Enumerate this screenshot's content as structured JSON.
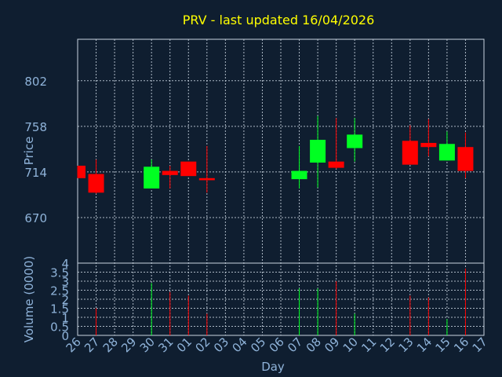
{
  "chart_data": {
    "type": "candlestick",
    "title": "PRV - last updated 16/04/2026",
    "price_panel": {
      "ylabel": "Price",
      "ylim": [
        626,
        842
      ],
      "yticks": [
        670,
        714,
        758,
        802
      ]
    },
    "volume_panel": {
      "ylabel": "Volume (0000)",
      "ylim": [
        0,
        4
      ],
      "yticks": [
        0,
        0.5,
        1,
        1.5,
        2,
        2.5,
        3,
        3.5,
        4
      ],
      "ytick_labels": [
        "0",
        "0.5",
        "1",
        "1.5",
        "2",
        "2.5",
        "3",
        "3.5",
        "4"
      ]
    },
    "xlabel": "Day",
    "categories": [
      "26",
      "27",
      "28",
      "29",
      "30",
      "31",
      "01",
      "02",
      "03",
      "04",
      "05",
      "06",
      "07",
      "08",
      "09",
      "10",
      "11",
      "12",
      "13",
      "14",
      "15",
      "16",
      "17"
    ],
    "candles": [
      {
        "day": "26",
        "open": 720,
        "high": 720,
        "low": 708,
        "close": 708
      },
      {
        "day": "27",
        "open": 712,
        "high": 726,
        "low": 693,
        "close": 694
      },
      {
        "day": "30",
        "open": 698,
        "high": 726,
        "low": 698,
        "close": 719
      },
      {
        "day": "31",
        "open": 715,
        "high": 720,
        "low": 698,
        "close": 711
      },
      {
        "day": "01",
        "open": 724,
        "high": 724,
        "low": 710,
        "close": 710
      },
      {
        "day": "02",
        "open": 708,
        "high": 739,
        "low": 694,
        "close": 706
      },
      {
        "day": "07",
        "open": 707,
        "high": 739,
        "low": 698,
        "close": 715
      },
      {
        "day": "08",
        "open": 723,
        "high": 768,
        "low": 699,
        "close": 745
      },
      {
        "day": "09",
        "open": 724,
        "high": 766,
        "low": 717,
        "close": 718
      },
      {
        "day": "10",
        "open": 737,
        "high": 766,
        "low": 724,
        "close": 750
      },
      {
        "day": "13",
        "open": 744,
        "high": 759,
        "low": 721,
        "close": 721
      },
      {
        "day": "14",
        "open": 742,
        "high": 765,
        "low": 729,
        "close": 738
      },
      {
        "day": "15",
        "open": 725,
        "high": 753,
        "low": 725,
        "close": 741
      },
      {
        "day": "16",
        "open": 738,
        "high": 752,
        "low": 708,
        "close": 715
      }
    ],
    "volume": [
      {
        "day": "27",
        "value": 1.5
      },
      {
        "day": "30",
        "value": 2.9
      },
      {
        "day": "31",
        "value": 2.4
      },
      {
        "day": "01",
        "value": 2.2
      },
      {
        "day": "02",
        "value": 1.2
      },
      {
        "day": "07",
        "value": 2.6
      },
      {
        "day": "08",
        "value": 2.6
      },
      {
        "day": "09",
        "value": 3.0
      },
      {
        "day": "10",
        "value": 1.2
      },
      {
        "day": "13",
        "value": 2.2
      },
      {
        "day": "14",
        "value": 2.1
      },
      {
        "day": "15",
        "value": 0.9
      },
      {
        "day": "16",
        "value": 3.7
      }
    ],
    "colors": {
      "background": "#0f1e30",
      "up": "#00ff22",
      "down": "#ff0000",
      "grid": "#c8d4e0",
      "frame": "#c8d4e0",
      "tick_text": "#8fb3d9",
      "title": "#ffff00"
    },
    "grid": true
  }
}
